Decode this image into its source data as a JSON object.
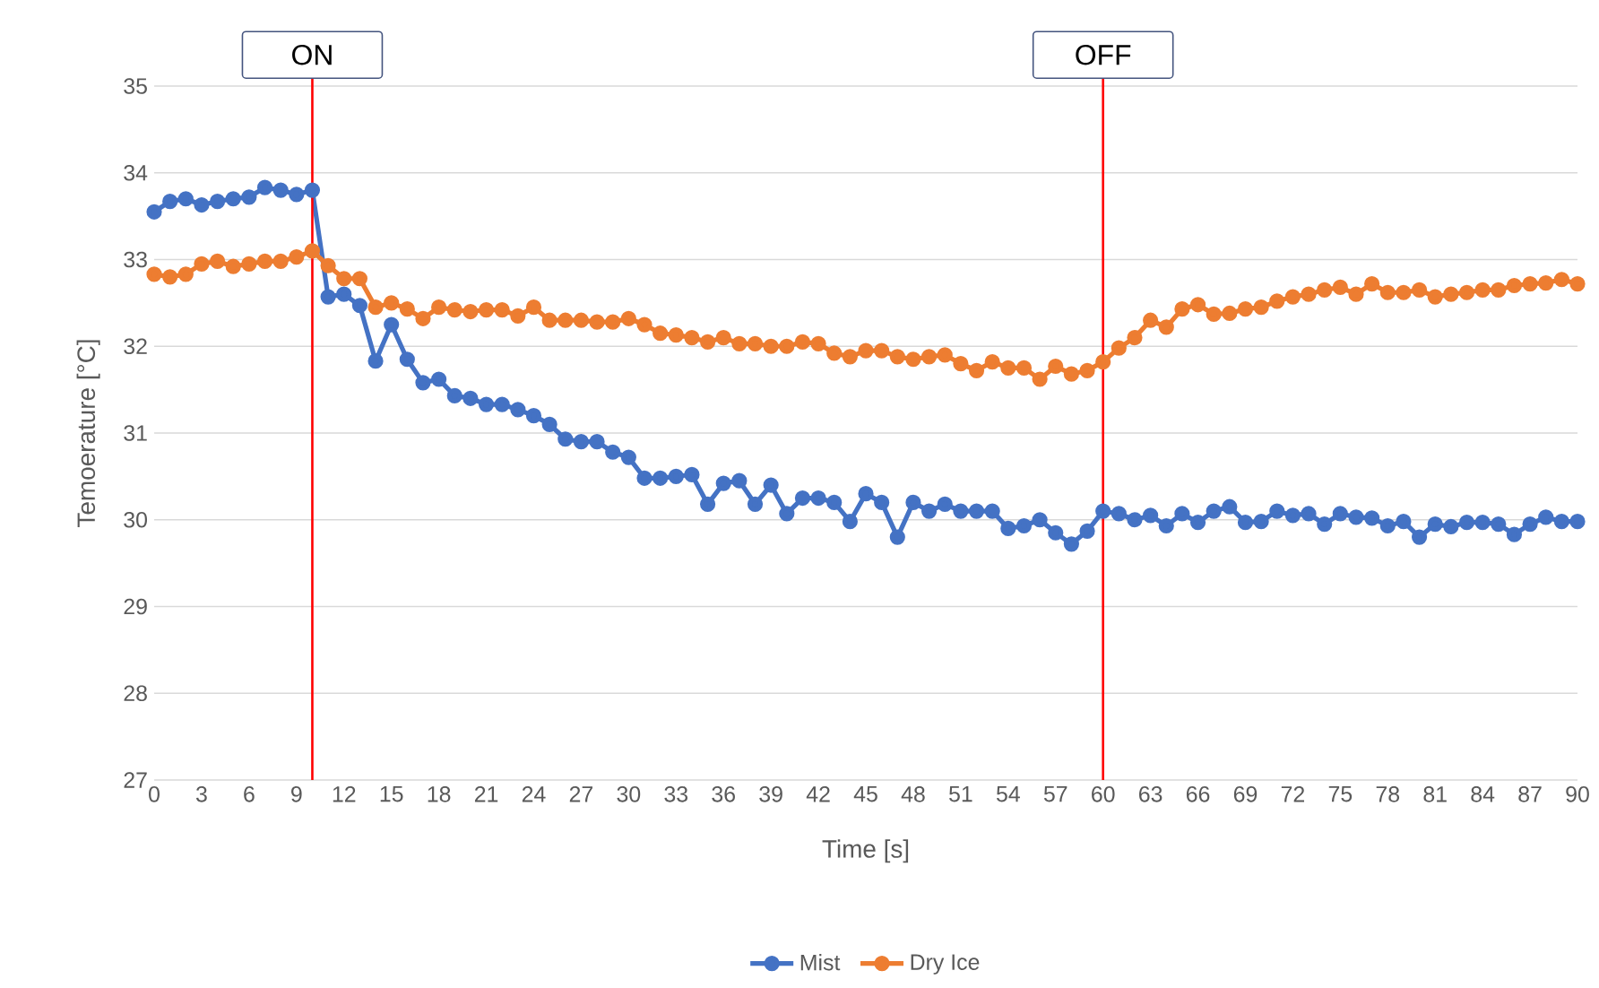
{
  "chart_data": {
    "type": "line",
    "xlabel": "Time [s]",
    "ylabel": "Temoerature [°C]",
    "x": [
      0,
      1,
      2,
      3,
      4,
      5,
      6,
      7,
      8,
      9,
      10,
      11,
      12,
      13,
      14,
      15,
      16,
      17,
      18,
      19,
      20,
      21,
      22,
      23,
      24,
      25,
      26,
      27,
      28,
      29,
      30,
      31,
      32,
      33,
      34,
      35,
      36,
      37,
      38,
      39,
      40,
      41,
      42,
      43,
      44,
      45,
      46,
      47,
      48,
      49,
      50,
      51,
      52,
      53,
      54,
      55,
      56,
      57,
      58,
      59,
      60,
      61,
      62,
      63,
      64,
      65,
      66,
      67,
      68,
      69,
      70,
      71,
      72,
      73,
      74,
      75,
      76,
      77,
      78,
      79,
      80,
      81,
      82,
      83,
      84,
      85,
      86,
      87,
      88,
      89,
      90
    ],
    "series": [
      {
        "name": "Mist",
        "color": "#4472c4",
        "values": [
          33.55,
          33.67,
          33.7,
          33.63,
          33.67,
          33.7,
          33.72,
          33.83,
          33.8,
          33.75,
          33.8,
          32.57,
          32.6,
          32.47,
          31.83,
          32.25,
          31.85,
          31.58,
          31.62,
          31.43,
          31.4,
          31.33,
          31.33,
          31.27,
          31.2,
          31.1,
          30.93,
          30.9,
          30.9,
          30.78,
          30.72,
          30.48,
          30.48,
          30.5,
          30.52,
          30.18,
          30.42,
          30.45,
          30.18,
          30.4,
          30.07,
          30.25,
          30.25,
          30.2,
          29.98,
          30.3,
          30.2,
          29.8,
          30.2,
          30.1,
          30.18,
          30.1,
          30.1,
          30.1,
          29.9,
          29.93,
          30.0,
          29.85,
          29.72,
          29.87,
          30.1,
          30.07,
          30.0,
          30.05,
          29.93,
          30.07,
          29.97,
          30.1,
          30.15,
          29.97,
          29.98,
          30.1,
          30.05,
          30.07,
          29.95,
          30.07,
          30.03,
          30.02,
          29.93,
          29.98,
          29.8,
          29.95,
          29.92,
          29.97,
          29.97,
          29.95,
          29.83,
          29.95,
          30.03,
          29.98,
          29.98
        ]
      },
      {
        "name": "Dry Ice",
        "color": "#ed7d31",
        "values": [
          32.83,
          32.8,
          32.83,
          32.95,
          32.98,
          32.92,
          32.95,
          32.98,
          32.98,
          33.03,
          33.1,
          32.93,
          32.78,
          32.78,
          32.45,
          32.5,
          32.43,
          32.32,
          32.45,
          32.42,
          32.4,
          32.42,
          32.42,
          32.35,
          32.45,
          32.3,
          32.3,
          32.3,
          32.28,
          32.28,
          32.32,
          32.25,
          32.15,
          32.13,
          32.1,
          32.05,
          32.1,
          32.03,
          32.03,
          32.0,
          32.0,
          32.05,
          32.03,
          31.92,
          31.88,
          31.95,
          31.95,
          31.88,
          31.85,
          31.88,
          31.9,
          31.8,
          31.72,
          31.82,
          31.75,
          31.75,
          31.62,
          31.77,
          31.68,
          31.72,
          31.82,
          31.98,
          32.1,
          32.3,
          32.22,
          32.43,
          32.48,
          32.37,
          32.38,
          32.43,
          32.45,
          32.52,
          32.57,
          32.6,
          32.65,
          32.68,
          32.6,
          32.72,
          32.62,
          32.62,
          32.65,
          32.57,
          32.6,
          32.62,
          32.65,
          32.65,
          32.7,
          32.72,
          32.73,
          32.77,
          32.72
        ]
      }
    ],
    "xlim": [
      0,
      90
    ],
    "xticks": [
      0,
      3,
      6,
      9,
      12,
      15,
      18,
      21,
      24,
      27,
      30,
      33,
      36,
      39,
      42,
      45,
      48,
      51,
      54,
      57,
      60,
      63,
      66,
      69,
      72,
      75,
      78,
      81,
      84,
      87,
      90
    ],
    "ylim": [
      27,
      35
    ],
    "yticks": [
      27,
      28,
      29,
      30,
      31,
      32,
      33,
      34,
      35
    ],
    "ref_lines": [
      {
        "axis": "x",
        "value": 10,
        "label": "ON",
        "color": "#ff0000"
      },
      {
        "axis": "x",
        "value": 60,
        "label": "OFF",
        "color": "#ff0000"
      }
    ],
    "grid": "y",
    "legend": "bottom",
    "marker": "circle",
    "line_style": "solid"
  }
}
